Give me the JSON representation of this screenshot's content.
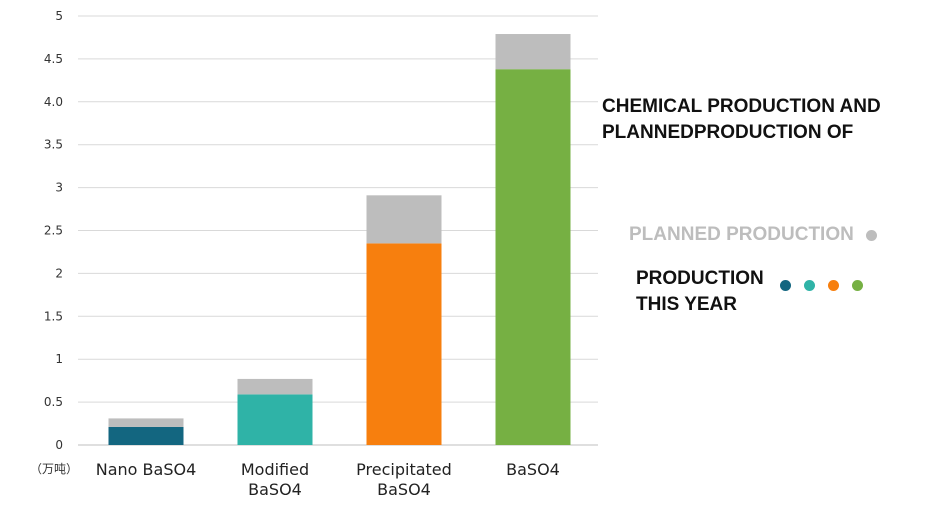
{
  "chart_data": {
    "type": "bar",
    "stacked": true,
    "title_lines": [
      "CHEMICAL PRODUCTION AND",
      "PLANNEDPRODUCTION OF"
    ],
    "unit_label": "（万吨）",
    "categories": [
      [
        "Nano BaSO4"
      ],
      [
        "Modified",
        "BaSO4"
      ],
      [
        "Precipitated",
        "BaSO4"
      ],
      [
        "BaSO4"
      ]
    ],
    "y_ticks": [
      "0",
      "0.5",
      "1",
      "1.5",
      "2",
      "2.5",
      "3",
      "3.5",
      "4.0",
      "4.5",
      "5"
    ],
    "ylim": [
      0,
      5
    ],
    "grid": true,
    "series": [
      {
        "name": "PRODUCTION THIS YEAR",
        "values": [
          0.21,
          0.59,
          2.35,
          4.38
        ]
      },
      {
        "name": "PLANNED PRODUCTION",
        "values": [
          0.1,
          0.18,
          0.56,
          0.41
        ]
      }
    ],
    "production_colors": [
      "#136680",
      "#2fb3a7",
      "#f77f0e",
      "#76b043"
    ],
    "planned_color": "#bdbdbd",
    "legend": {
      "planned_label": "PLANNED PRODUCTION",
      "production_lines": [
        "PRODUCTION",
        "THIS YEAR"
      ]
    }
  }
}
